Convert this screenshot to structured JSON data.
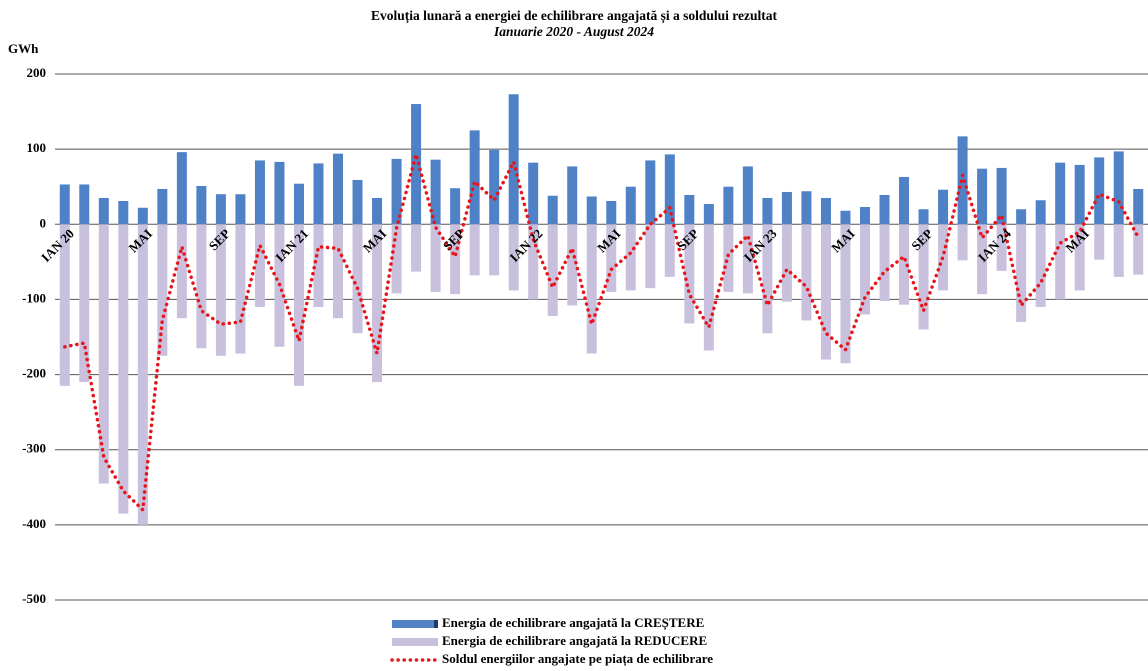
{
  "chart_data": {
    "type": "bar",
    "title": "Evoluția lunară a energiei de echilibrare angajată și a soldului rezultat",
    "subtitle": "Ianuarie 2020 - August 2024",
    "y_axis_label": "GWh",
    "categories": [
      "IAN 20",
      null,
      null,
      null,
      "MAI",
      null,
      null,
      null,
      "SEP",
      null,
      null,
      null,
      "IAN 21",
      null,
      null,
      null,
      "MAI",
      null,
      null,
      null,
      "SEP",
      null,
      null,
      null,
      "IAN 22",
      null,
      null,
      null,
      "MAI",
      null,
      null,
      null,
      "SEP",
      null,
      null,
      null,
      "IAN 23",
      null,
      null,
      null,
      "MAI",
      null,
      null,
      null,
      "SEP",
      null,
      null,
      null,
      "IAN 24",
      null,
      null,
      null,
      "MAI",
      null,
      null,
      null
    ],
    "ylim": [
      -500,
      200
    ],
    "yticks": [
      -500,
      -400,
      -300,
      -200,
      -100,
      0,
      100,
      200
    ],
    "grid": true,
    "legend": "bottom",
    "series": [
      {
        "name": "Energia de echilibrare angajată la CREȘTERE",
        "type": "bar",
        "color": "#4f81c7",
        "values": [
          53,
          53,
          35,
          31,
          22,
          47,
          96,
          51,
          40,
          40,
          85,
          83,
          54,
          81,
          94,
          59,
          35,
          87,
          160,
          86,
          48,
          125,
          99,
          173,
          82,
          38,
          77,
          37,
          31,
          50,
          85,
          93,
          39,
          27,
          50,
          77,
          35,
          43,
          44,
          35,
          18,
          23,
          39,
          63,
          20,
          46,
          117,
          74,
          75,
          20,
          32,
          82,
          79,
          89,
          97,
          47
        ]
      },
      {
        "name": "Energia de echilibrare angajată la REDUCERE",
        "type": "bar",
        "color": "#c9c0dd",
        "values": [
          -215,
          -210,
          -345,
          -385,
          -400,
          -175,
          -125,
          -165,
          -175,
          -172,
          -110,
          -163,
          -215,
          -110,
          -125,
          -145,
          -210,
          -92,
          -63,
          -90,
          -93,
          -68,
          -68,
          -88,
          -100,
          -122,
          -108,
          -172,
          -90,
          -88,
          -85,
          -70,
          -132,
          -168,
          -90,
          -92,
          -145,
          -103,
          -128,
          -180,
          -185,
          -120,
          -102,
          -107,
          -140,
          -88,
          -48,
          -93,
          -62,
          -130,
          -110,
          -100,
          -88,
          -47,
          -70,
          -67
        ]
      },
      {
        "name": "Soldul energiilor angajate pe piața de echilibrare",
        "type": "line",
        "color": "#e8141a",
        "values": [
          -163,
          -158,
          -310,
          -355,
          -380,
          -128,
          -30,
          -115,
          -133,
          -130,
          -28,
          -80,
          -155,
          -30,
          -32,
          -85,
          -172,
          -5,
          93,
          -4,
          -43,
          57,
          32,
          83,
          -20,
          -84,
          -32,
          -133,
          -60,
          -38,
          0,
          22,
          -93,
          -137,
          -40,
          -15,
          -108,
          -60,
          -83,
          -145,
          -167,
          -97,
          -63,
          -43,
          -115,
          -43,
          65,
          -18,
          12,
          -108,
          -78,
          -25,
          -10,
          40,
          30,
          -17
        ]
      }
    ]
  }
}
